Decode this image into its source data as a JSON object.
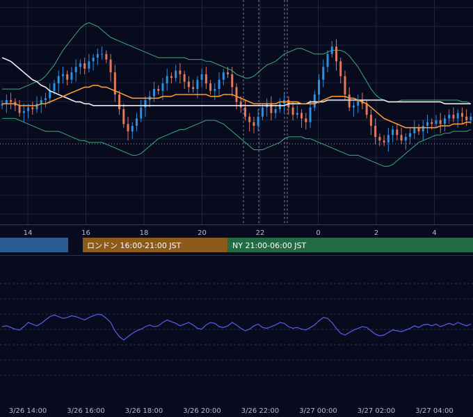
{
  "colors": {
    "background": "#080a1e",
    "grid": "#1f2540",
    "candle_up": "#2f8fe0",
    "candle_down": "#e07a5c",
    "bollinger": "#3fae78",
    "ma_short": "#ff9a2e",
    "ma_long": "#f2f2f2",
    "indicator_line": "#5a5ef0",
    "session_tokyo": "#2c5d91",
    "session_london": "#8c5a1a",
    "session_ny": "#236b45"
  },
  "price_axis": {
    "ylim": [
      0,
      100
    ]
  },
  "top_time_labels": [
    "14",
    "16",
    "18",
    "20",
    "22",
    "0",
    "2",
    "4"
  ],
  "sessions": [
    {
      "name": "tokyo",
      "label": ""
    },
    {
      "name": "london",
      "label": "ロンドン 16:00-21:00 JST"
    },
    {
      "name": "ny",
      "label": "NY 21:00-06:00 JST"
    }
  ],
  "bottom_time_labels": [
    "3/26 14:00",
    "3/26 16:00",
    "3/26 18:00",
    "3/26 20:00",
    "3/26 22:00",
    "3/27 00:00",
    "3/27 02:00",
    "3/27 04:00"
  ],
  "chart_data": {
    "type": "line",
    "x_hours": [
      13,
      19.5
    ],
    "candles_close": [
      55,
      57,
      56,
      54,
      50,
      51,
      53,
      52,
      55,
      57,
      58,
      62,
      66,
      70,
      71,
      68,
      72,
      75,
      77,
      74,
      78,
      80,
      82,
      82,
      79,
      72,
      60,
      52,
      44,
      40,
      43,
      47,
      53,
      57,
      59,
      63,
      62,
      66,
      70,
      69,
      73,
      71,
      67,
      64,
      63,
      68,
      71,
      66,
      62,
      63,
      68,
      72,
      71,
      64,
      56,
      53,
      48,
      45,
      43,
      48,
      53,
      55,
      50,
      52,
      55,
      57,
      53,
      49,
      50,
      47,
      45,
      53,
      60,
      68,
      75,
      82,
      86,
      78,
      70,
      60,
      53,
      54,
      57,
      55,
      49,
      43,
      37,
      35,
      34,
      38,
      41,
      38,
      35,
      37,
      39,
      42,
      40,
      43,
      45,
      44,
      46,
      44,
      47,
      49,
      47,
      50,
      48,
      46,
      48
    ],
    "ma_short": [
      55,
      55,
      55,
      55,
      54,
      54,
      54,
      54,
      54,
      55,
      55,
      56,
      57,
      58,
      59,
      60,
      61,
      62,
      63,
      64,
      64,
      65,
      65,
      64,
      64,
      63,
      62,
      61,
      60,
      59,
      58,
      58,
      58,
      58,
      58,
      58,
      58,
      59,
      59,
      59,
      60,
      60,
      60,
      60,
      60,
      60,
      60,
      60,
      59,
      59,
      59,
      60,
      60,
      60,
      59,
      58,
      57,
      56,
      55,
      55,
      55,
      55,
      55,
      55,
      56,
      56,
      56,
      56,
      56,
      55,
      55,
      55,
      55,
      56,
      57,
      58,
      59,
      59,
      59,
      59,
      58,
      58,
      57,
      56,
      55,
      53,
      51,
      49,
      47,
      46,
      45,
      44,
      43,
      42,
      42,
      42,
      42,
      42,
      42,
      42,
      42,
      43,
      43,
      43,
      44,
      44,
      44,
      45,
      45
    ],
    "ma_long": [
      80,
      79,
      78,
      76,
      74,
      72,
      70,
      68,
      67,
      65,
      64,
      62,
      61,
      60,
      59,
      58,
      57,
      56,
      56,
      55,
      55,
      54,
      54,
      54,
      54,
      54,
      54,
      54,
      54,
      54,
      54,
      54,
      54,
      54,
      54,
      54,
      54,
      54,
      54,
      54,
      54,
      54,
      54,
      54,
      54,
      54,
      54,
      54,
      54,
      54,
      54,
      54,
      54,
      54,
      54,
      54,
      54,
      54,
      54,
      54,
      54,
      54,
      54,
      54,
      54,
      54,
      55,
      55,
      55,
      55,
      55,
      56,
      56,
      56,
      56,
      57,
      57,
      57,
      57,
      57,
      57,
      57,
      57,
      57,
      57,
      57,
      57,
      57,
      57,
      56,
      56,
      56,
      56,
      56,
      56,
      56,
      56,
      56,
      56,
      56,
      56,
      56,
      55,
      55,
      55,
      55,
      55,
      55,
      55
    ],
    "bb_upper": [
      63,
      63,
      63,
      63,
      63,
      64,
      65,
      66,
      67,
      68,
      70,
      73,
      76,
      80,
      84,
      87,
      90,
      93,
      96,
      98,
      99,
      98,
      97,
      95,
      93,
      91,
      90,
      89,
      88,
      87,
      86,
      85,
      84,
      83,
      82,
      81,
      80,
      80,
      80,
      80,
      80,
      80,
      80,
      79,
      79,
      79,
      79,
      78,
      78,
      77,
      76,
      75,
      74,
      73,
      71,
      70,
      69,
      69,
      70,
      72,
      74,
      76,
      77,
      78,
      80,
      82,
      83,
      84,
      85,
      85,
      84,
      83,
      82,
      82,
      82,
      83,
      84,
      84,
      84,
      83,
      81,
      78,
      75,
      71,
      67,
      63,
      60,
      58,
      57,
      56,
      56,
      56,
      57,
      57,
      57,
      57,
      57,
      57,
      57,
      57,
      57,
      57,
      57,
      57,
      57,
      57,
      56,
      56,
      55
    ],
    "bb_lower": [
      47,
      47,
      47,
      47,
      46,
      45,
      44,
      43,
      42,
      41,
      40,
      40,
      40,
      40,
      39,
      38,
      37,
      36,
      35,
      35,
      34,
      34,
      34,
      34,
      33,
      32,
      31,
      30,
      29,
      28,
      27,
      27,
      28,
      30,
      32,
      34,
      36,
      37,
      38,
      39,
      40,
      41,
      41,
      42,
      43,
      44,
      45,
      46,
      46,
      46,
      45,
      44,
      42,
      40,
      38,
      36,
      34,
      32,
      30,
      30,
      30,
      31,
      32,
      33,
      34,
      36,
      37,
      37,
      37,
      37,
      36,
      36,
      35,
      34,
      33,
      32,
      31,
      30,
      29,
      28,
      27,
      27,
      27,
      26,
      25,
      24,
      23,
      22,
      21,
      21,
      22,
      24,
      26,
      28,
      30,
      32,
      34,
      35,
      36,
      37,
      38,
      38,
      39,
      39,
      40,
      40,
      40,
      40,
      41
    ],
    "indicator_values": [
      50,
      51,
      49,
      47,
      46,
      50,
      55,
      53,
      51,
      54,
      58,
      62,
      64,
      62,
      60,
      61,
      63,
      62,
      60,
      58,
      61,
      63,
      65,
      64,
      60,
      55,
      45,
      38,
      34,
      38,
      42,
      45,
      47,
      50,
      52,
      50,
      51,
      55,
      58,
      56,
      54,
      51,
      53,
      55,
      52,
      48,
      47,
      52,
      55,
      54,
      50,
      49,
      51,
      55,
      52,
      48,
      45,
      47,
      51,
      53,
      49,
      48,
      50,
      52,
      55,
      54,
      50,
      48,
      49,
      47,
      46,
      49,
      52,
      57,
      61,
      60,
      55,
      48,
      42,
      40,
      43,
      46,
      48,
      50,
      49,
      45,
      41,
      39,
      40,
      43,
      46,
      45,
      44,
      46,
      48,
      51,
      49,
      52,
      53,
      51,
      53,
      50,
      52,
      54,
      52,
      55,
      53,
      51,
      53
    ]
  }
}
